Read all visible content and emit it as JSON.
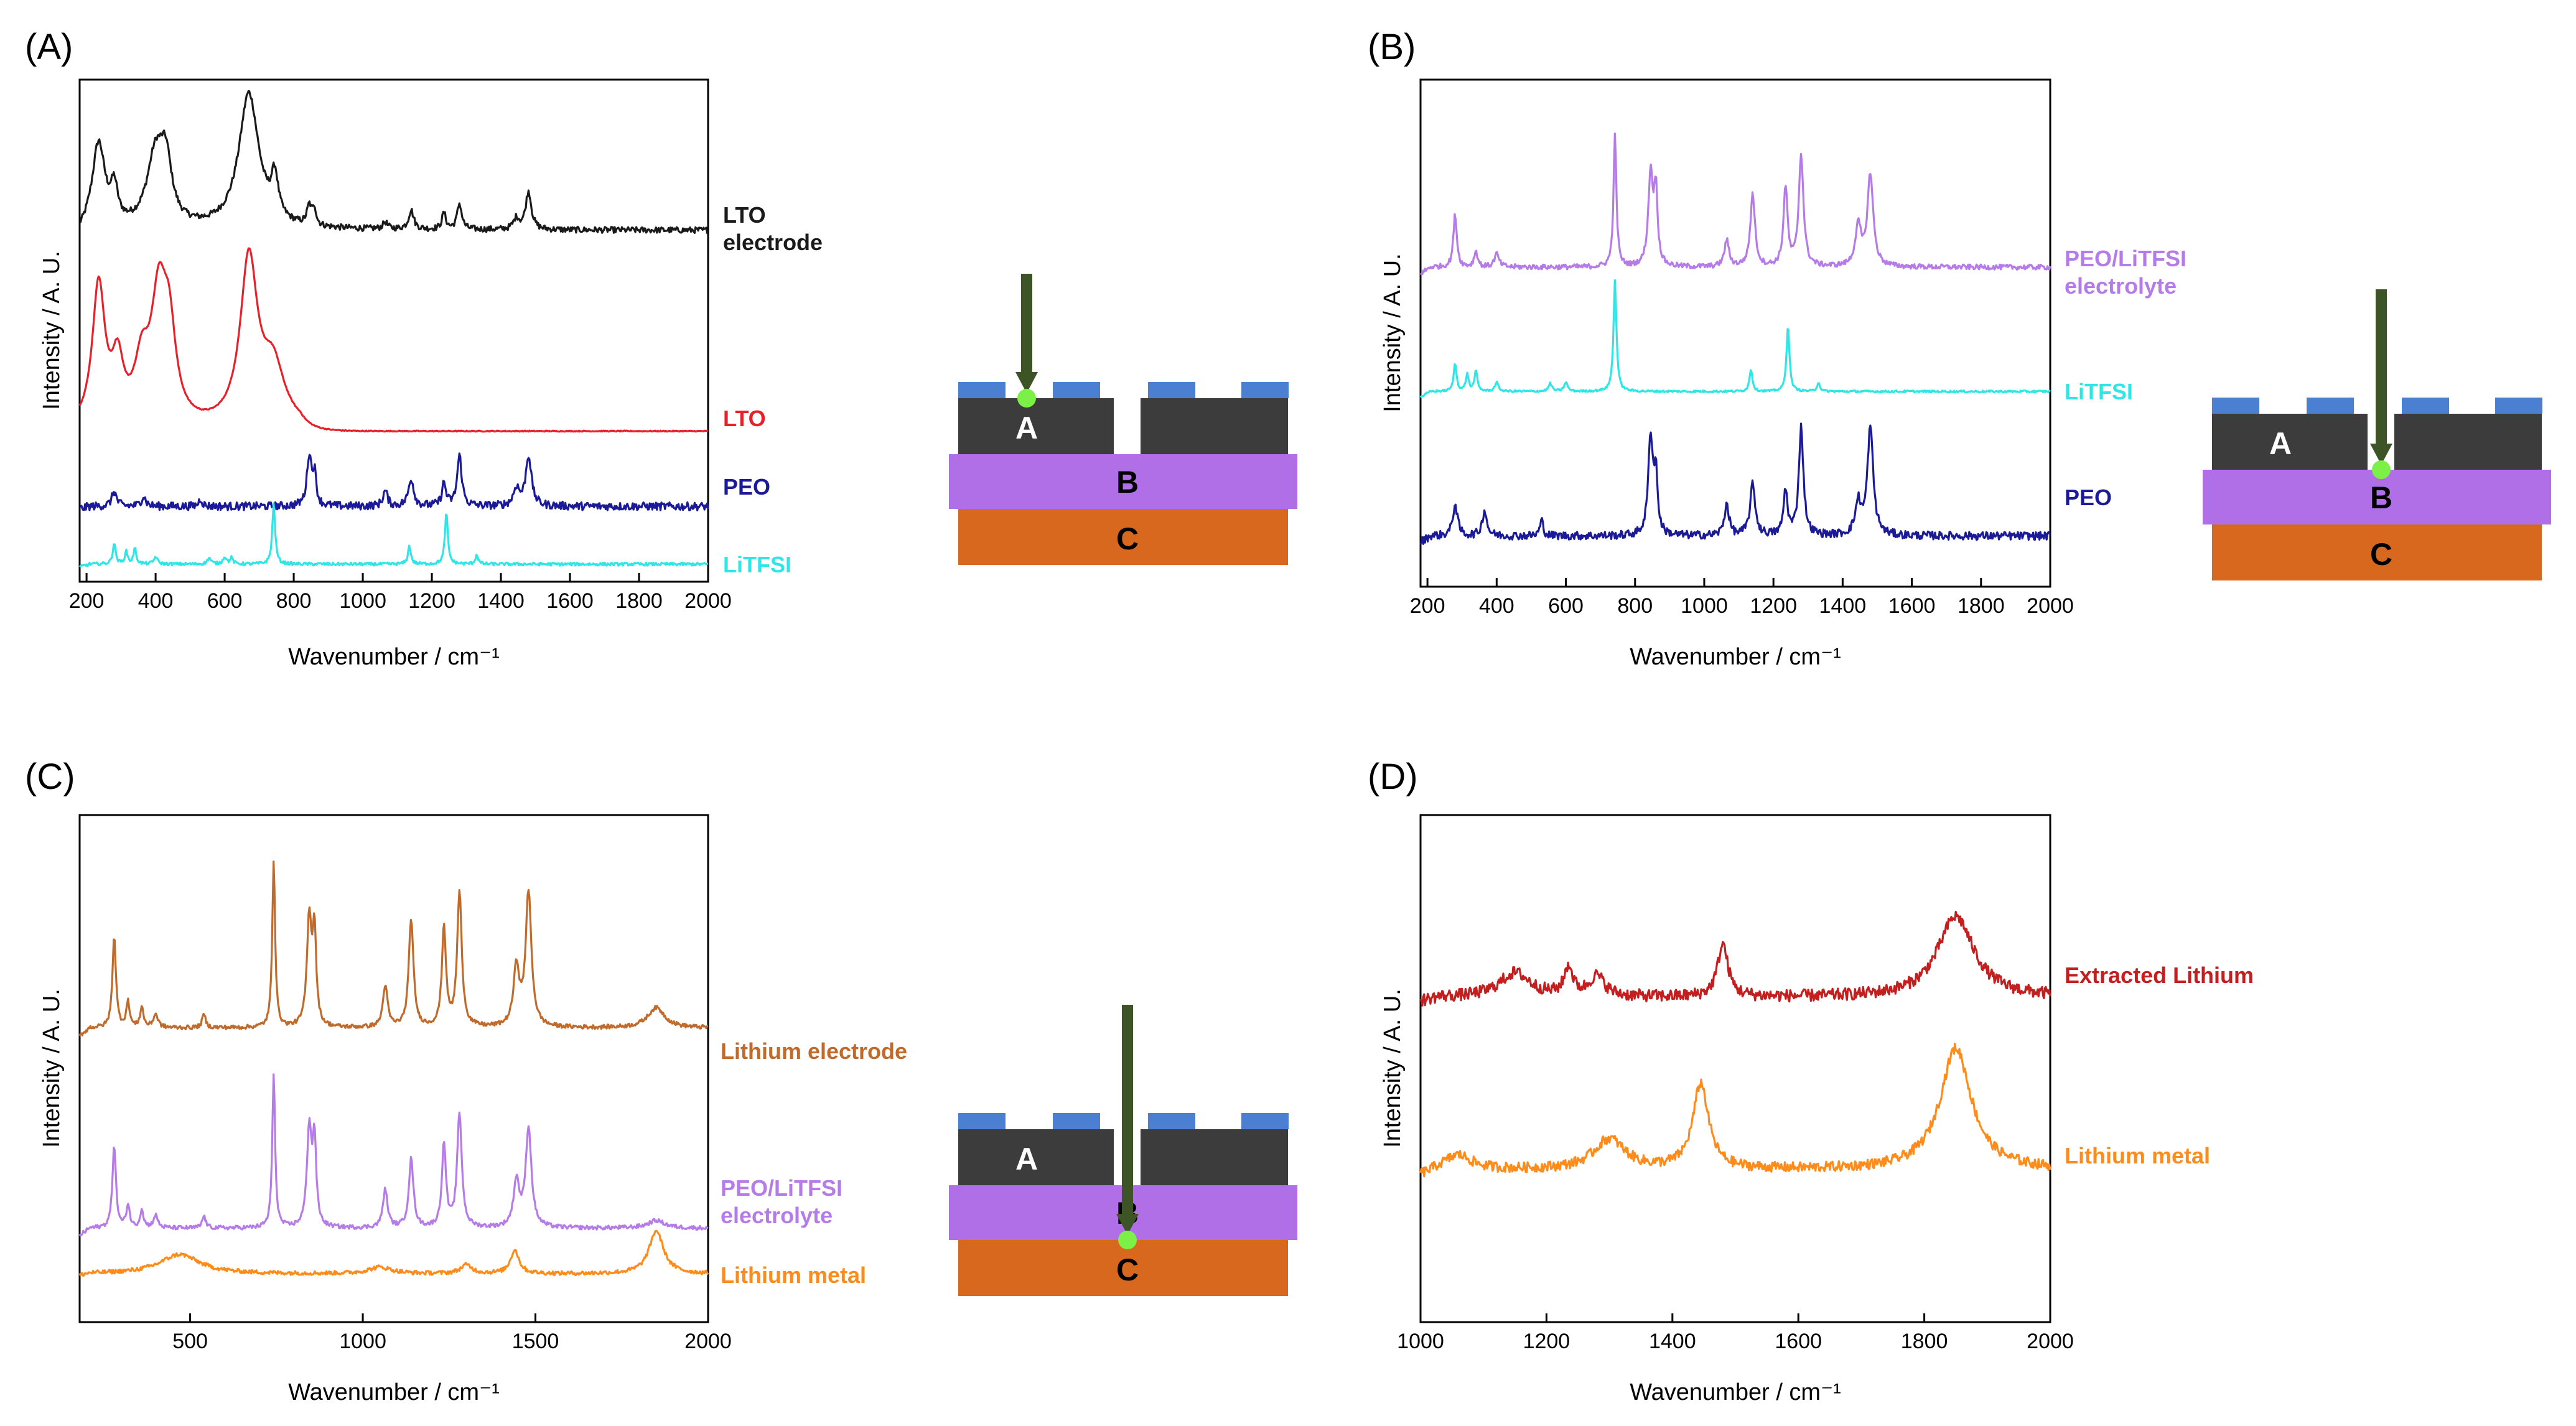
{
  "panels": [
    {
      "label": "(A)",
      "xlabel": "Wavenumber / cm⁻¹",
      "ylabel": "Intensity / A. U.",
      "schematic_point": "A"
    },
    {
      "label": "(B)",
      "xlabel": "Wavenumber / cm⁻¹",
      "ylabel": "Intensity / A. U.",
      "schematic_point": "B"
    },
    {
      "label": "(C)",
      "xlabel": "Wavenumber / cm⁻¹",
      "ylabel": "Intensity / A. U.",
      "schematic_point": "C"
    },
    {
      "label": "(D)",
      "xlabel": "Wavenumber / cm⁻¹",
      "ylabel": "Intensity / A. U.",
      "schematic_point": ""
    }
  ],
  "schematic": {
    "layer_a": "A",
    "layer_b": "B",
    "layer_c": "C"
  },
  "colors": {
    "black": "#1a1a1a",
    "red": "#e8202a",
    "navy": "#1b1b9a",
    "cyan": "#2ee6e6",
    "lilac": "#b57be8",
    "brown": "#c06a2b",
    "orange": "#ff8c1a",
    "darkred": "#c41e1e",
    "layer_dark": "#3c3c3c",
    "layer_purple": "#b06fe6",
    "layer_orange": "#d9681f",
    "contact_blue": "#4a7fd1",
    "arrow": "#3d5426",
    "dot": "#7cf046"
  },
  "chart_data": [
    {
      "type": "line",
      "panel": "A",
      "xlim": [
        180,
        2000
      ],
      "xticks": [
        200,
        400,
        600,
        800,
        1000,
        1200,
        1400,
        1600,
        1800,
        2000
      ],
      "grid": false,
      "legend": "right-of-plot labels",
      "series": [
        {
          "name": "LTO\nelectrode",
          "color": "#1a1a1a",
          "offset": 0.7,
          "scale": 0.27,
          "noise": 0.006,
          "plateau_end": 0,
          "peaks": [
            [
              235,
              0.62,
              22
            ],
            [
              280,
              0.25,
              12
            ],
            [
              400,
              0.52,
              30
            ],
            [
              430,
              0.4,
              20
            ],
            [
              670,
              1.0,
              35
            ],
            [
              745,
              0.3,
              12
            ],
            [
              845,
              0.14,
              8
            ],
            [
              860,
              0.12,
              6
            ],
            [
              1065,
              0.05,
              8
            ],
            [
              1140,
              0.14,
              9
            ],
            [
              1235,
              0.12,
              7
            ],
            [
              1280,
              0.19,
              8
            ],
            [
              1445,
              0.08,
              10
            ],
            [
              1480,
              0.28,
              10
            ]
          ]
        },
        {
          "name": "LTO",
          "color": "#e8202a",
          "offset": 0.3,
          "scale": 0.33,
          "noise": 0.001,
          "plateau_end": 820,
          "peaks": [
            [
              235,
              0.85,
              22
            ],
            [
              290,
              0.35,
              20
            ],
            [
              360,
              0.32,
              25
            ],
            [
              410,
              0.75,
              28
            ],
            [
              440,
              0.45,
              22
            ],
            [
              670,
              1.0,
              30
            ],
            [
              740,
              0.35,
              40
            ]
          ]
        },
        {
          "name": "PEO",
          "color": "#1b1b9a",
          "offset": 0.15,
          "scale": 0.1,
          "noise": 0.008,
          "plateau_end": 0,
          "peaks": [
            [
              280,
              0.3,
              8
            ],
            [
              365,
              0.2,
              8
            ],
            [
              530,
              0.15,
              6
            ],
            [
              845,
              1.0,
              8
            ],
            [
              860,
              0.6,
              6
            ],
            [
              1065,
              0.3,
              8
            ],
            [
              1140,
              0.55,
              9
            ],
            [
              1235,
              0.45,
              7
            ],
            [
              1280,
              1.0,
              8
            ],
            [
              1445,
              0.35,
              10
            ],
            [
              1480,
              1.0,
              10
            ]
          ]
        },
        {
          "name": "LiTFSI",
          "color": "#2ee6e6",
          "offset": 0.035,
          "scale": 0.12,
          "noise": 0.003,
          "plateau_end": 0,
          "peaks": [
            [
              280,
              0.35,
              5
            ],
            [
              315,
              0.2,
              5
            ],
            [
              340,
              0.25,
              5
            ],
            [
              400,
              0.12,
              6
            ],
            [
              555,
              0.1,
              6
            ],
            [
              600,
              0.12,
              6
            ],
            [
              620,
              0.1,
              5
            ],
            [
              742,
              1.0,
              5
            ],
            [
              1135,
              0.3,
              5
            ],
            [
              1242,
              0.85,
              5
            ],
            [
              1330,
              0.15,
              5
            ]
          ]
        }
      ]
    },
    {
      "type": "line",
      "panel": "B",
      "xlim": [
        180,
        2000
      ],
      "xticks": [
        200,
        400,
        600,
        800,
        1000,
        1200,
        1400,
        1600,
        1800,
        2000
      ],
      "grid": false,
      "legend": "right-of-plot labels",
      "series": [
        {
          "name": "PEO/LiTFSI\nelectrolyte",
          "color": "#b57be8",
          "offset": 0.63,
          "scale": 0.26,
          "noise": 0.005,
          "plateau_end": 0,
          "peaks": [
            [
              280,
              0.4,
              6
            ],
            [
              340,
              0.12,
              6
            ],
            [
              400,
              0.1,
              8
            ],
            [
              742,
              1.0,
              5
            ],
            [
              845,
              0.7,
              8
            ],
            [
              860,
              0.55,
              6
            ],
            [
              1065,
              0.2,
              8
            ],
            [
              1140,
              0.55,
              8
            ],
            [
              1235,
              0.6,
              7
            ],
            [
              1280,
              0.85,
              8
            ],
            [
              1445,
              0.3,
              10
            ],
            [
              1480,
              0.7,
              10
            ]
          ]
        },
        {
          "name": "LiTFSI",
          "color": "#2ee6e6",
          "offset": 0.385,
          "scale": 0.22,
          "noise": 0.002,
          "plateau_end": 0,
          "peaks": [
            [
              280,
              0.25,
              5
            ],
            [
              315,
              0.15,
              5
            ],
            [
              340,
              0.18,
              5
            ],
            [
              400,
              0.08,
              6
            ],
            [
              555,
              0.07,
              6
            ],
            [
              600,
              0.08,
              6
            ],
            [
              742,
              1.0,
              5
            ],
            [
              1135,
              0.2,
              5
            ],
            [
              1242,
              0.6,
              5
            ],
            [
              1330,
              0.08,
              5
            ]
          ]
        },
        {
          "name": "PEO",
          "color": "#1b1b9a",
          "offset": 0.1,
          "scale": 0.25,
          "noise": 0.008,
          "plateau_end": 0,
          "peaks": [
            [
              280,
              0.25,
              8
            ],
            [
              365,
              0.2,
              8
            ],
            [
              530,
              0.12,
              6
            ],
            [
              845,
              0.78,
              8
            ],
            [
              860,
              0.45,
              6
            ],
            [
              1065,
              0.25,
              8
            ],
            [
              1140,
              0.4,
              9
            ],
            [
              1235,
              0.35,
              7
            ],
            [
              1280,
              0.85,
              8
            ],
            [
              1445,
              0.25,
              10
            ],
            [
              1480,
              0.85,
              10
            ]
          ]
        }
      ]
    },
    {
      "type": "line",
      "panel": "C",
      "xlim": [
        180,
        2000
      ],
      "xticks": [
        500,
        1000,
        1500,
        2000
      ],
      "grid": false,
      "legend": "right-of-plot labels",
      "series": [
        {
          "name": "Lithium electrode",
          "color": "#c06a2b",
          "offset": 0.58,
          "scale": 0.33,
          "noise": 0.004,
          "plateau_end": 0,
          "peaks": [
            [
              280,
              0.55,
              6
            ],
            [
              320,
              0.15,
              6
            ],
            [
              360,
              0.12,
              6
            ],
            [
              400,
              0.08,
              8
            ],
            [
              540,
              0.08,
              6
            ],
            [
              742,
              1.0,
              5
            ],
            [
              845,
              0.65,
              8
            ],
            [
              860,
              0.55,
              6
            ],
            [
              1065,
              0.25,
              8
            ],
            [
              1140,
              0.65,
              8
            ],
            [
              1235,
              0.6,
              7
            ],
            [
              1280,
              0.8,
              8
            ],
            [
              1445,
              0.35,
              10
            ],
            [
              1480,
              0.8,
              10
            ],
            [
              1850,
              0.12,
              30
            ]
          ]
        },
        {
          "name": "PEO/LiTFSI\nelectrolyte",
          "color": "#b57be8",
          "offset": 0.185,
          "scale": 0.3,
          "noise": 0.004,
          "plateau_end": 0,
          "peaks": [
            [
              280,
              0.55,
              6
            ],
            [
              320,
              0.15,
              6
            ],
            [
              360,
              0.12,
              6
            ],
            [
              400,
              0.08,
              8
            ],
            [
              540,
              0.08,
              6
            ],
            [
              742,
              1.0,
              5
            ],
            [
              845,
              0.65,
              8
            ],
            [
              860,
              0.55,
              6
            ],
            [
              1065,
              0.25,
              8
            ],
            [
              1140,
              0.45,
              8
            ],
            [
              1235,
              0.55,
              7
            ],
            [
              1280,
              0.75,
              8
            ],
            [
              1445,
              0.3,
              10
            ],
            [
              1480,
              0.65,
              10
            ],
            [
              1850,
              0.05,
              30
            ]
          ]
        },
        {
          "name": "Lithium metal",
          "color": "#ff8c1a",
          "offset": 0.095,
          "scale": 0.085,
          "noise": 0.004,
          "plateau_end": 0,
          "peaks": [
            [
              470,
              0.45,
              70
            ],
            [
              1050,
              0.15,
              40
            ],
            [
              1300,
              0.2,
              20
            ],
            [
              1440,
              0.55,
              15
            ],
            [
              1850,
              1.0,
              25
            ]
          ]
        }
      ]
    },
    {
      "type": "line",
      "panel": "D",
      "xlim": [
        1000,
        2000
      ],
      "xticks": [
        1000,
        1200,
        1400,
        1600,
        1800,
        2000
      ],
      "grid": false,
      "legend": "right-of-plot labels",
      "series": [
        {
          "name": "Extracted Lithium",
          "color": "#c41e1e",
          "offset": 0.64,
          "scale": 0.16,
          "noise": 0.012,
          "plateau_end": 0,
          "peaks": [
            [
              1150,
              0.3,
              30
            ],
            [
              1235,
              0.35,
              8
            ],
            [
              1280,
              0.25,
              15
            ],
            [
              1480,
              0.65,
              10
            ],
            [
              1850,
              1.0,
              35
            ]
          ]
        },
        {
          "name": "Lithium metal",
          "color": "#ff8c1a",
          "offset": 0.3,
          "scale": 0.24,
          "noise": 0.01,
          "plateau_end": 0,
          "peaks": [
            [
              1060,
              0.12,
              25
            ],
            [
              1300,
              0.25,
              30
            ],
            [
              1445,
              0.7,
              15
            ],
            [
              1850,
              1.0,
              30
            ]
          ]
        }
      ]
    }
  ]
}
